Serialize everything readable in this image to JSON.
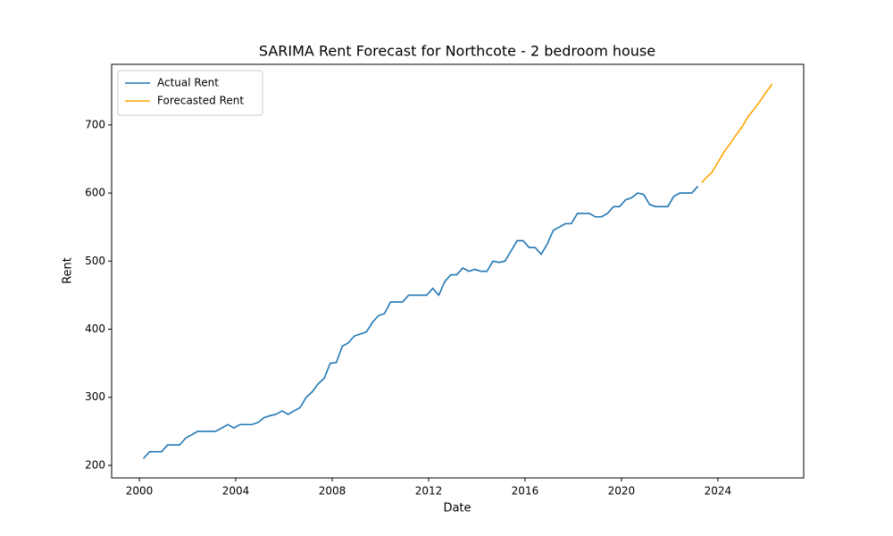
{
  "chart_data": {
    "type": "line",
    "title": "SARIMA Rent Forecast for Northcote - 2 bedroom house",
    "x_label": "Date",
    "y_label": "Rent",
    "xlim": [
      1998.85,
      2027.56
    ],
    "ylim": [
      181.6,
      789
    ],
    "xticks": [
      2000,
      2004,
      2008,
      2012,
      2016,
      2020,
      2024
    ],
    "yticks": [
      200,
      300,
      400,
      500,
      600,
      700
    ],
    "grid": false,
    "legend": "upper left",
    "series": [
      {
        "name": "Actual Rent",
        "color": "#1f77b4",
        "x": [
          2000.17,
          2000.42,
          2000.67,
          2000.92,
          2001.17,
          2001.42,
          2001.67,
          2001.92,
          2002.17,
          2002.42,
          2002.67,
          2002.92,
          2003.17,
          2003.42,
          2003.67,
          2003.92,
          2004.17,
          2004.42,
          2004.67,
          2004.92,
          2005.17,
          2005.42,
          2005.67,
          2005.92,
          2006.17,
          2006.42,
          2006.67,
          2006.92,
          2007.17,
          2007.42,
          2007.67,
          2007.92,
          2008.17,
          2008.42,
          2008.67,
          2008.92,
          2009.17,
          2009.42,
          2009.67,
          2009.92,
          2010.17,
          2010.42,
          2010.67,
          2010.92,
          2011.17,
          2011.42,
          2011.67,
          2011.92,
          2012.17,
          2012.42,
          2012.67,
          2012.92,
          2013.17,
          2013.42,
          2013.67,
          2013.92,
          2014.17,
          2014.42,
          2014.67,
          2014.92,
          2015.17,
          2015.42,
          2015.67,
          2015.92,
          2016.17,
          2016.42,
          2016.67,
          2016.92,
          2017.17,
          2017.42,
          2017.67,
          2017.92,
          2018.17,
          2018.42,
          2018.67,
          2018.92,
          2019.17,
          2019.42,
          2019.67,
          2019.92,
          2020.17,
          2020.42,
          2020.67,
          2020.92,
          2021.17,
          2021.42,
          2021.67,
          2021.92,
          2022.17,
          2022.42,
          2022.67,
          2022.92,
          2023.17
        ],
        "values": [
          210,
          220,
          220,
          220,
          230,
          230,
          230,
          240,
          245,
          250,
          250,
          250,
          250,
          255,
          260,
          255,
          260,
          260,
          260,
          263,
          270,
          273,
          275,
          280,
          275,
          280,
          285,
          300,
          308,
          320,
          328,
          350,
          351,
          375,
          380,
          390,
          393,
          396,
          410,
          420,
          423,
          440,
          440,
          440,
          450,
          450,
          450,
          450,
          460,
          450,
          470,
          480,
          480,
          490,
          485,
          488,
          485,
          485,
          500,
          498,
          500,
          515,
          530,
          530,
          520,
          520,
          510,
          525,
          545,
          550,
          555,
          555,
          570,
          570,
          570,
          565,
          565,
          570,
          580,
          580,
          590,
          593,
          600,
          598,
          583,
          580,
          580,
          580,
          595,
          600,
          600,
          600,
          610
        ]
      },
      {
        "name": "Forecasted Rent",
        "color": "#ffa500",
        "x": [
          2023.33,
          2023.5,
          2023.75,
          2024,
          2024.25,
          2024.5,
          2024.75,
          2025,
          2025.25,
          2025.5,
          2025.75,
          2026,
          2026.25
        ],
        "values": [
          615,
          622,
          630,
          645,
          660,
          672,
          685,
          697,
          712,
          723,
          735,
          748,
          760
        ]
      }
    ]
  }
}
